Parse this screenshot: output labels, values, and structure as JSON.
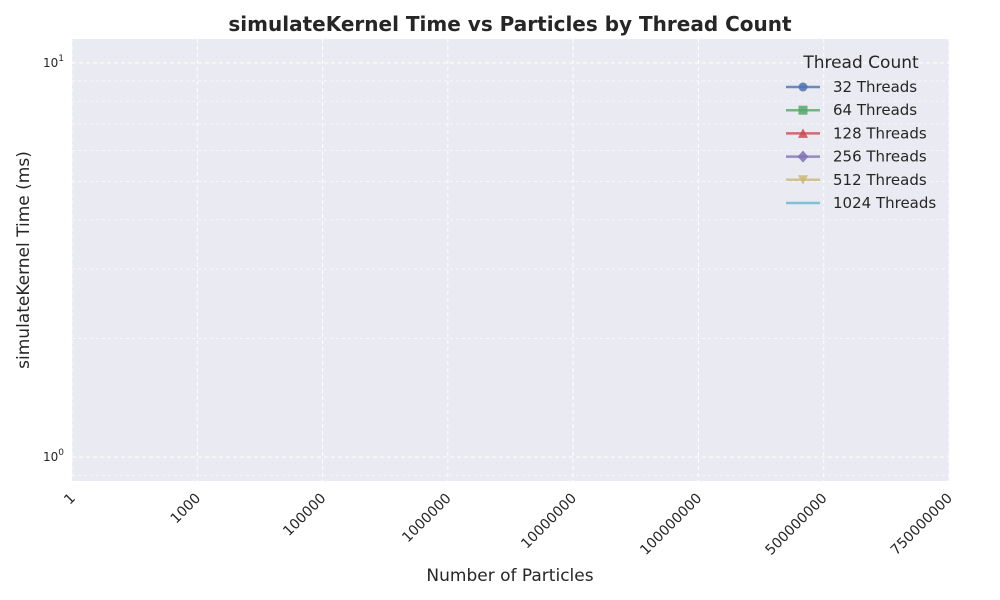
{
  "chart_data": {
    "type": "line",
    "title": "simulateKernel Time vs Particles by Thread Count",
    "xlabel": "Number of Particles",
    "ylabel": "simulateKernel Time (ms)",
    "x_categories": [
      "1",
      "1000",
      "100000",
      "1000000",
      "10000000",
      "100000000",
      "500000000",
      "750000000"
    ],
    "y_scale": "log",
    "ylim": [
      0.87,
      11.5
    ],
    "y_ticks": [
      {
        "value": 1,
        "base": "10",
        "exp": "0"
      },
      {
        "value": 10,
        "base": "10",
        "exp": "1"
      }
    ],
    "grid": true,
    "legend": {
      "title": "Thread Count",
      "placement": "top-right"
    },
    "series": [
      {
        "name": "32 Threads",
        "color": "#4c72b0",
        "marker": "circle",
        "values": []
      },
      {
        "name": "64 Threads",
        "color": "#55a868",
        "marker": "square",
        "values": []
      },
      {
        "name": "128 Threads",
        "color": "#c44e52",
        "marker": "triangle-up",
        "values": []
      },
      {
        "name": "256 Threads",
        "color": "#8172b2",
        "marker": "diamond",
        "values": []
      },
      {
        "name": "512 Threads",
        "color": "#ccb974",
        "marker": "triangle-down",
        "values": []
      },
      {
        "name": "1024 Threads",
        "color": "#64b5cd",
        "marker": "none",
        "values": []
      }
    ]
  }
}
